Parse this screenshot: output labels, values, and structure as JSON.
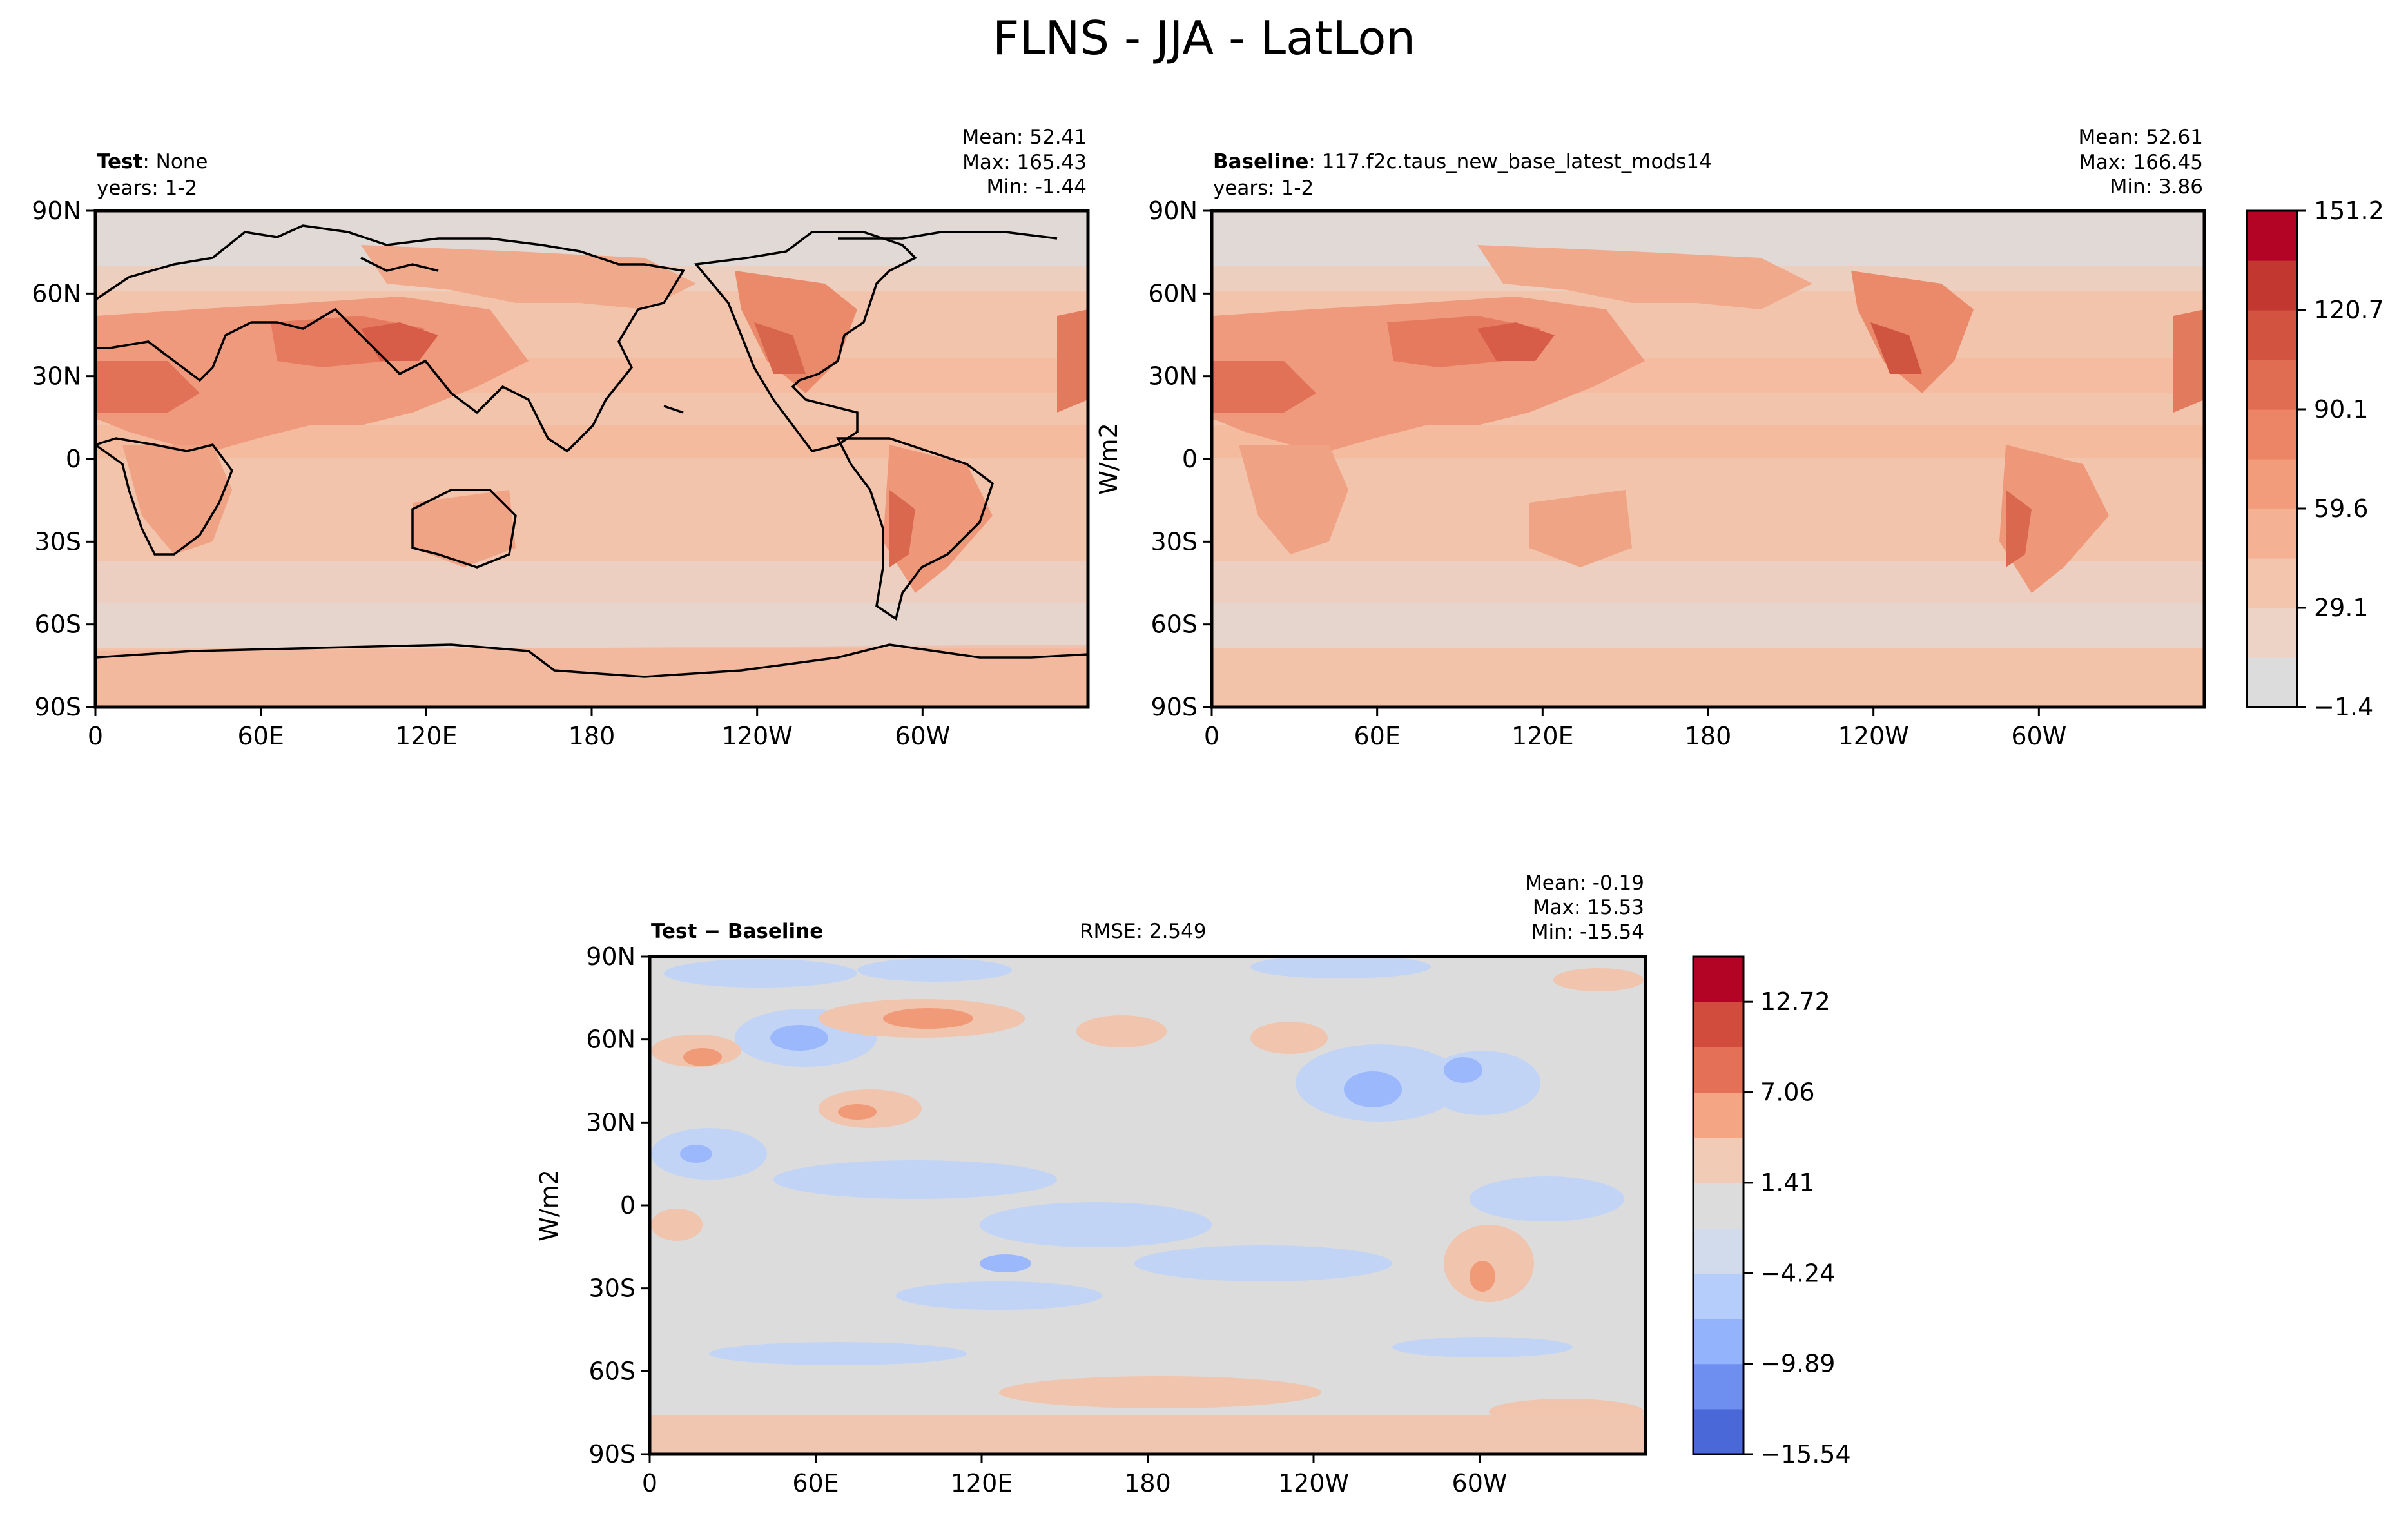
{
  "chart_data": {
    "suptitle": "FLNS - JJA - LatLon",
    "type": "heatmap",
    "lon_ticks": [
      "0",
      "60E",
      "120E",
      "180",
      "120W",
      "60W"
    ],
    "lat_ticks": [
      "90N",
      "60N",
      "30N",
      "0",
      "30S",
      "60S",
      "90S"
    ],
    "panels": [
      {
        "id": "test",
        "title_bold": "Test",
        "title_value": ": None",
        "years": "years: 1-2",
        "stats": [
          "Mean: 52.41",
          "Max: 165.43",
          "Min: -1.44"
        ],
        "field": "FLNS",
        "units": "W/m2",
        "mean": 52.41,
        "max": 165.43,
        "min": -1.44
      },
      {
        "id": "baseline",
        "title_bold": "Baseline",
        "title_value": ": 117.f2c.taus_new_base_latest_mods14",
        "years": "years: 1-2",
        "stats": [
          "Mean: 52.61",
          "Max: 166.45",
          "Min:  3.86"
        ],
        "ylabel": "W/m2",
        "mean": 52.61,
        "max": 166.45,
        "min": 3.86
      },
      {
        "id": "diff",
        "title_bold": "Test − Baseline",
        "rmse": "RMSE: 2.549",
        "stats": [
          "Mean: -0.19",
          "Max: 15.53",
          "Min: -15.54"
        ],
        "ylabel": "W/m2",
        "mean": -0.19,
        "max": 15.53,
        "min": -15.54
      }
    ],
    "colorbar_top": {
      "ticks": [
        "151.2",
        "120.7",
        "90.1",
        "59.6",
        "29.1",
        "−1.4"
      ],
      "colors": [
        "#dddcdc",
        "#ecd3c5",
        "#f3c5ad",
        "#f5b194",
        "#f29c7c",
        "#eb8566",
        "#e06c51",
        "#d25340",
        "#c23730",
        "#b40426"
      ]
    },
    "colorbar_diff": {
      "ticks": [
        "12.72",
        "7.06",
        "1.41",
        "−4.24",
        "−9.89",
        "−15.54"
      ],
      "colors": [
        "#4b68d8",
        "#6f8ff0",
        "#93b3fc",
        "#b5cdfa",
        "#d2dbec",
        "#dddcdc",
        "#f2cbb7",
        "#f4a583",
        "#e57058",
        "#d14c3d",
        "#b40426"
      ]
    }
  }
}
